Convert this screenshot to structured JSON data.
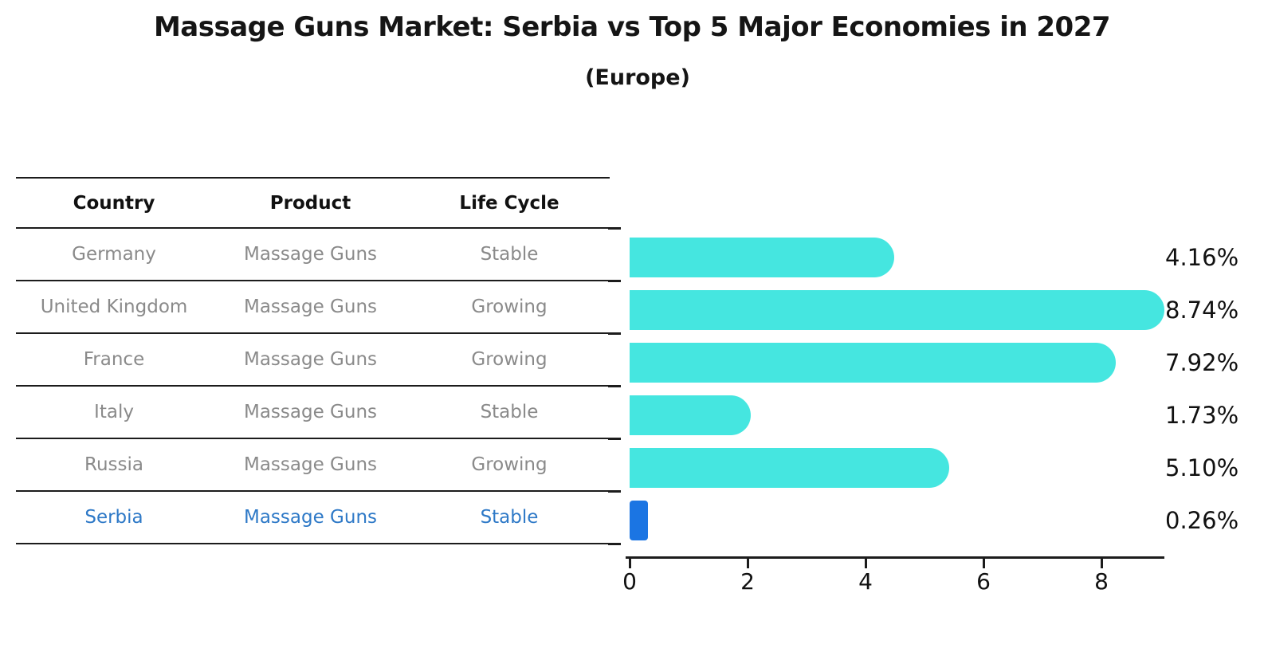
{
  "title": "Massage Guns Market: Serbia vs Top 5 Major Economies in 2027",
  "subtitle": "(Europe)",
  "table": {
    "headers": [
      "Country",
      "Product",
      "Life Cycle"
    ],
    "rows": [
      {
        "country": "Germany",
        "product": "Massage Guns",
        "life_cycle": "Stable",
        "highlight": false
      },
      {
        "country": "United Kingdom",
        "product": "Massage Guns",
        "life_cycle": "Growing",
        "highlight": false
      },
      {
        "country": "France",
        "product": "Massage Guns",
        "life_cycle": "Growing",
        "highlight": false
      },
      {
        "country": "Italy",
        "product": "Massage Guns",
        "life_cycle": "Stable",
        "highlight": false
      },
      {
        "country": "Russia",
        "product": "Massage Guns",
        "life_cycle": "Growing",
        "highlight": false
      },
      {
        "country": "Serbia",
        "product": "Massage Guns",
        "life_cycle": "Stable",
        "highlight": true
      }
    ]
  },
  "chart_data": {
    "type": "bar",
    "orientation": "horizontal",
    "title": "Massage Guns Market: Serbia vs Top 5 Major Economies in 2027 (Europe)",
    "categories": [
      "Germany",
      "United Kingdom",
      "France",
      "Italy",
      "Russia",
      "Serbia"
    ],
    "values": [
      4.16,
      8.74,
      7.92,
      1.73,
      5.1,
      0.26
    ],
    "value_labels": [
      "4.16%",
      "8.74%",
      "7.92%",
      "1.73%",
      "5.10%",
      "0.26%"
    ],
    "xlabel": "",
    "ylabel": "",
    "xlim": [
      0,
      9
    ],
    "x_ticks": [
      0,
      2,
      4,
      6,
      8
    ],
    "grid": false,
    "legend": false,
    "highlight_index": 5,
    "bar_color": "#45e6e0",
    "highlight_color": "#1b75e3",
    "highlight_text_color": "#2e79c7"
  }
}
